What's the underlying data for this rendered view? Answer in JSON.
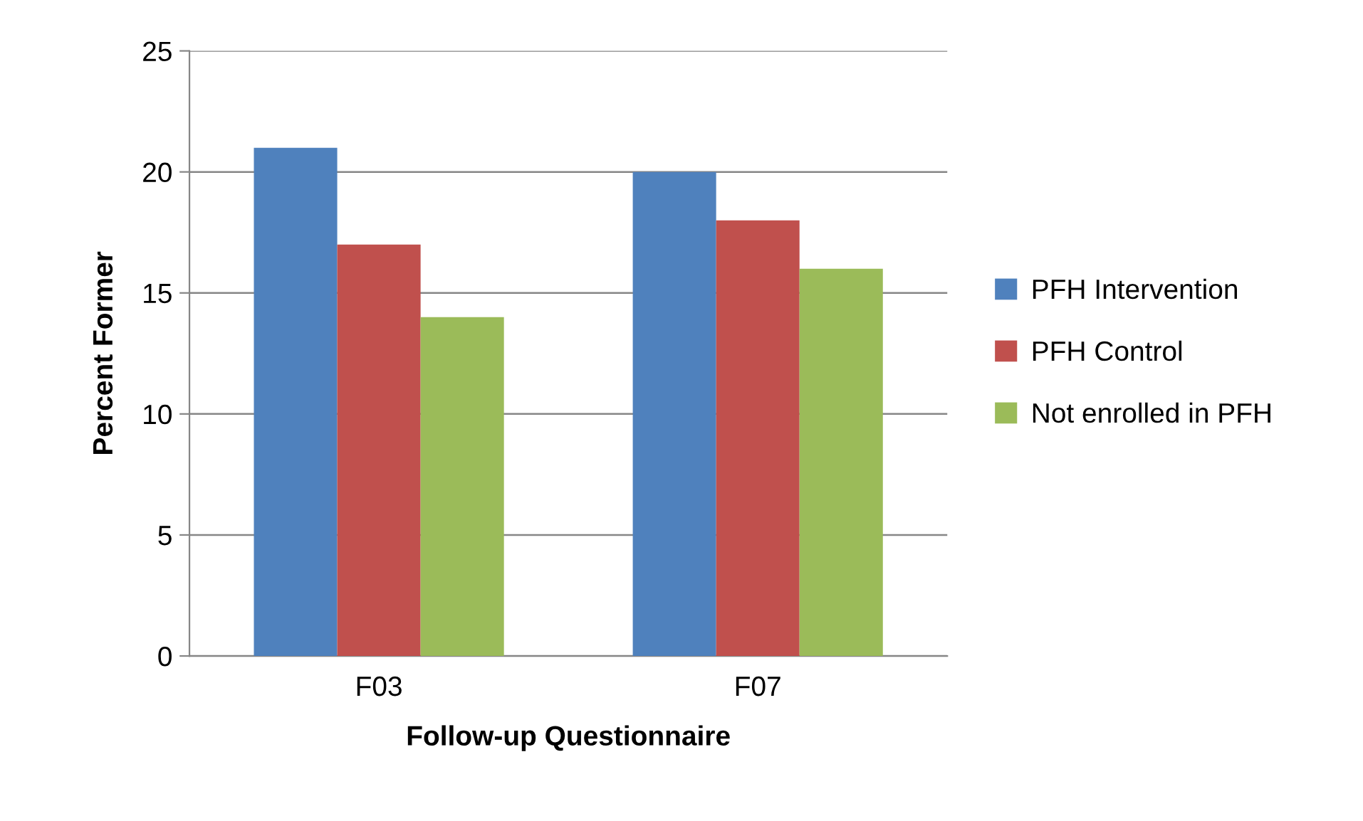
{
  "chart_data": {
    "type": "bar",
    "xlabel": "Follow-up Questionnaire",
    "ylabel": "Percent Former",
    "categories": [
      "F03",
      "F07"
    ],
    "series": [
      {
        "name": "PFH Intervention",
        "color": "#4f81bd",
        "values": [
          21,
          20
        ]
      },
      {
        "name": "PFH Control",
        "color": "#c0504d",
        "values": [
          17,
          18
        ]
      },
      {
        "name": "Not enrolled in PFH",
        "color": "#9bbb59",
        "values": [
          14,
          16
        ]
      }
    ],
    "ylim": [
      0,
      25
    ],
    "yticks": [
      0,
      5,
      10,
      15,
      20,
      25
    ],
    "grid": "y",
    "legend": "right"
  }
}
